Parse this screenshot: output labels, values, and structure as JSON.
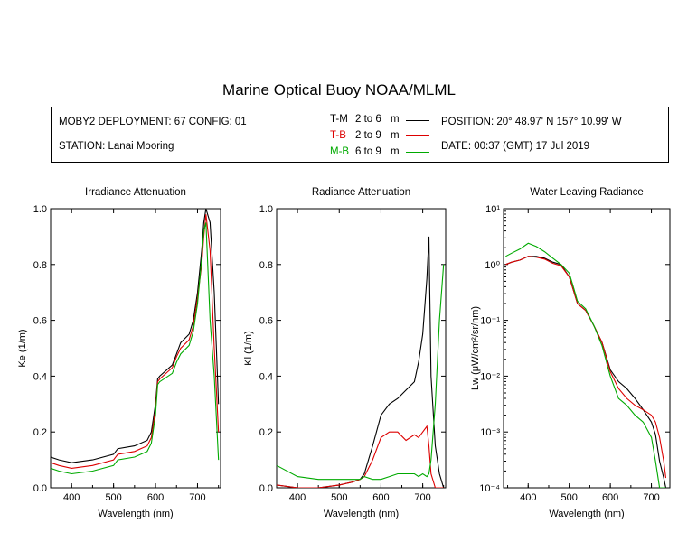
{
  "title": "Marine Optical Buoy NOAA/MLML",
  "info": {
    "deployment": "MOBY2 DEPLOYMENT: 67 CONFIG: 01",
    "station": "STATION: Lanai Mooring",
    "position": "POSITION: 20° 48.97' N   157° 10.99' W",
    "date": "DATE: 00:37 (GMT) 17 Jul 2019",
    "legend": [
      {
        "code": "T-M",
        "range": "2 to 6",
        "unit": "m",
        "color": "#000000"
      },
      {
        "code": "T-B",
        "range": "2 to 9",
        "unit": "m",
        "color": "#dd0000"
      },
      {
        "code": "M-B",
        "range": "6 to 9",
        "unit": "m",
        "color": "#00aa00"
      }
    ]
  },
  "colors": {
    "T-M": "#000000",
    "T-B": "#dd0000",
    "M-B": "#00aa00"
  },
  "chart_data": [
    {
      "type": "line",
      "title": "Irradiance Attenuation",
      "xlabel": "Wavelength (nm)",
      "ylabel": "Ke  (1/m)",
      "xlim": [
        350,
        755
      ],
      "ylim": [
        0,
        1.0
      ],
      "xticks": [
        "400",
        "500",
        "600",
        "700"
      ],
      "yticks": [
        "0.0",
        "0.2",
        "0.4",
        "0.6",
        "0.8",
        "1.0"
      ],
      "series": [
        {
          "name": "T-M",
          "x": [
            350,
            370,
            400,
            450,
            500,
            510,
            550,
            580,
            590,
            600,
            605,
            610,
            640,
            650,
            660,
            680,
            690,
            700,
            710,
            715,
            720,
            730,
            740,
            750
          ],
          "y": [
            0.11,
            0.1,
            0.09,
            0.1,
            0.12,
            0.14,
            0.15,
            0.17,
            0.2,
            0.3,
            0.39,
            0.4,
            0.44,
            0.48,
            0.52,
            0.55,
            0.6,
            0.7,
            0.85,
            0.95,
            1.0,
            0.95,
            0.7,
            0.3
          ]
        },
        {
          "name": "T-B",
          "x": [
            350,
            370,
            400,
            450,
            500,
            510,
            550,
            580,
            590,
            600,
            605,
            610,
            640,
            650,
            660,
            680,
            690,
            700,
            710,
            715,
            720,
            730,
            740,
            750
          ],
          "y": [
            0.09,
            0.08,
            0.07,
            0.08,
            0.1,
            0.12,
            0.13,
            0.15,
            0.18,
            0.28,
            0.38,
            0.39,
            0.43,
            0.47,
            0.5,
            0.53,
            0.58,
            0.68,
            0.8,
            0.9,
            0.98,
            0.85,
            0.5,
            0.2
          ]
        },
        {
          "name": "M-B",
          "x": [
            350,
            370,
            400,
            450,
            500,
            510,
            550,
            580,
            590,
            600,
            605,
            610,
            640,
            650,
            660,
            680,
            690,
            700,
            710,
            715,
            720,
            730,
            740,
            750
          ],
          "y": [
            0.07,
            0.06,
            0.05,
            0.06,
            0.08,
            0.1,
            0.11,
            0.13,
            0.16,
            0.26,
            0.37,
            0.38,
            0.41,
            0.45,
            0.48,
            0.51,
            0.56,
            0.66,
            0.82,
            0.92,
            0.95,
            0.6,
            0.4,
            0.1
          ]
        }
      ]
    },
    {
      "type": "line",
      "title": "Radiance Attenuation",
      "xlabel": "Wavelength (nm)",
      "ylabel": "Kl  (1/m)",
      "xlim": [
        350,
        755
      ],
      "ylim": [
        0,
        1.0
      ],
      "xticks": [
        "400",
        "500",
        "600",
        "700"
      ],
      "yticks": [
        "0.0",
        "0.2",
        "0.4",
        "0.6",
        "0.8",
        "1.0"
      ],
      "series": [
        {
          "name": "T-M",
          "x": [
            350,
            400,
            450,
            500,
            530,
            550,
            560,
            580,
            600,
            620,
            640,
            660,
            680,
            690,
            700,
            710,
            715,
            720,
            730,
            740,
            750
          ],
          "y": [
            0.01,
            0.0,
            0.0,
            0.01,
            0.02,
            0.03,
            0.05,
            0.15,
            0.26,
            0.3,
            0.32,
            0.35,
            0.38,
            0.45,
            0.55,
            0.75,
            0.9,
            0.4,
            0.15,
            0.05,
            0.0
          ]
        },
        {
          "name": "T-B",
          "x": [
            350,
            400,
            450,
            500,
            530,
            550,
            560,
            580,
            600,
            620,
            640,
            660,
            680,
            690,
            700,
            710,
            715,
            720,
            730,
            740,
            750
          ],
          "y": [
            0.01,
            0.0,
            0.0,
            0.01,
            0.02,
            0.03,
            0.04,
            0.1,
            0.18,
            0.2,
            0.2,
            0.17,
            0.19,
            0.18,
            0.2,
            0.22,
            0.15,
            0.05,
            0.0,
            0.0,
            0.0
          ]
        },
        {
          "name": "M-B",
          "x": [
            350,
            400,
            450,
            500,
            530,
            550,
            560,
            580,
            600,
            620,
            640,
            660,
            680,
            690,
            700,
            710,
            715,
            720,
            730,
            740,
            750
          ],
          "y": [
            0.08,
            0.04,
            0.03,
            0.03,
            0.03,
            0.03,
            0.04,
            0.03,
            0.03,
            0.04,
            0.05,
            0.05,
            0.05,
            0.04,
            0.05,
            0.04,
            0.05,
            0.1,
            0.3,
            0.6,
            0.8
          ]
        }
      ]
    },
    {
      "type": "line",
      "title": "Water Leaving Radiance",
      "xlabel": "Wavelength (nm)",
      "ylabel": "Lw  (μW/cm²/sr/nm)",
      "xlim": [
        340,
        745
      ],
      "ylim": [
        0.0001,
        10
      ],
      "yscale": "log",
      "xticks": [
        "400",
        "500",
        "600",
        "700"
      ],
      "yticks": [
        "10⁻⁴",
        "10⁻³",
        "10⁻²",
        "10⁻¹",
        "10⁰",
        "10¹"
      ],
      "series": [
        {
          "name": "T-M",
          "x": [
            345,
            360,
            380,
            400,
            420,
            440,
            460,
            480,
            500,
            510,
            520,
            540,
            560,
            580,
            600,
            620,
            640,
            660,
            680,
            700,
            710,
            720,
            730,
            735
          ],
          "y": [
            1.0,
            1.1,
            1.2,
            1.4,
            1.4,
            1.3,
            1.1,
            1.0,
            0.6,
            0.35,
            0.2,
            0.15,
            0.08,
            0.04,
            0.013,
            0.008,
            0.006,
            0.004,
            0.0025,
            0.0015,
            0.0009,
            0.0003,
            0.00015,
            0.0001
          ]
        },
        {
          "name": "T-B",
          "x": [
            345,
            360,
            380,
            400,
            420,
            440,
            460,
            480,
            500,
            510,
            520,
            540,
            560,
            580,
            600,
            620,
            640,
            660,
            680,
            700,
            710,
            720,
            730,
            735
          ],
          "y": [
            1.0,
            1.1,
            1.2,
            1.4,
            1.35,
            1.25,
            1.05,
            0.95,
            0.6,
            0.35,
            0.2,
            0.15,
            0.08,
            0.04,
            0.012,
            0.006,
            0.004,
            0.003,
            0.0025,
            0.002,
            0.0015,
            0.0008,
            0.0003,
            0.00015
          ]
        },
        {
          "name": "M-B",
          "x": [
            345,
            360,
            380,
            400,
            420,
            440,
            460,
            480,
            500,
            510,
            520,
            540,
            560,
            580,
            600,
            620,
            640,
            660,
            680,
            700,
            710,
            720,
            730,
            735
          ],
          "y": [
            1.4,
            1.6,
            1.9,
            2.4,
            2.1,
            1.7,
            1.3,
            1.0,
            0.7,
            0.4,
            0.22,
            0.16,
            0.08,
            0.035,
            0.01,
            0.004,
            0.003,
            0.002,
            0.0015,
            0.0008,
            0.0003,
            0.0001,
            0.0001,
            0.0001
          ]
        }
      ]
    }
  ]
}
